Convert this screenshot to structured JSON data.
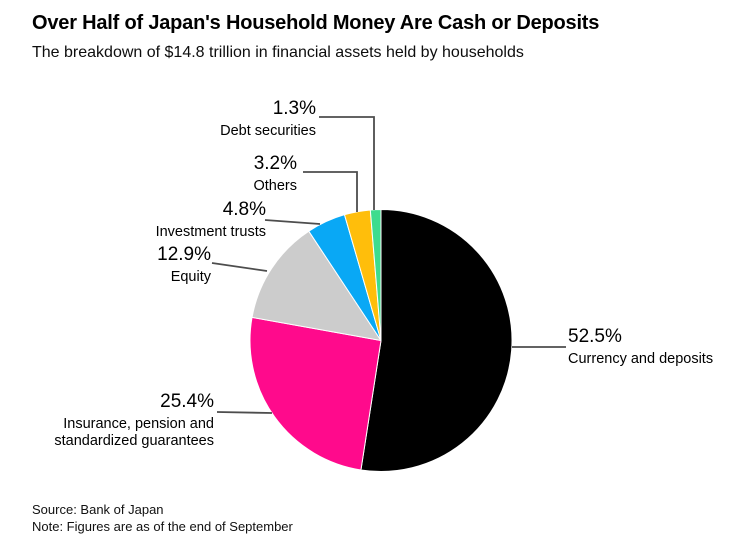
{
  "header": {
    "title": "Over Half of Japan's Household Money Are Cash or Deposits",
    "subtitle": "The breakdown of $14.8 trillion in financial assets held by households"
  },
  "chart_data": {
    "type": "pie",
    "title": "Over Half of Japan's Household Money Are Cash or Deposits",
    "subtitle": "The breakdown of $14.8 trillion in financial assets held by households",
    "total_described": "$14.8 trillion",
    "unit": "%",
    "direction": "clockwise",
    "start_angle_deg": 0,
    "legend_position": "callout-labels",
    "slices": [
      {
        "label": "Currency and deposits",
        "value": 52.5,
        "display_value": "52.5%",
        "color": "#000000"
      },
      {
        "label": "Insurance, pension and standardized guarantees",
        "value": 25.4,
        "display_value": "25.4%",
        "color": "#ff0a8c"
      },
      {
        "label": "Equity",
        "value": 12.9,
        "display_value": "12.9%",
        "color": "#cccccc"
      },
      {
        "label": "Investment trusts",
        "value": 4.8,
        "display_value": "4.8%",
        "color": "#09a8f5"
      },
      {
        "label": "Others",
        "value": 3.2,
        "display_value": "3.2%",
        "color": "#ffbe0b"
      },
      {
        "label": "Debt securities",
        "value": 1.3,
        "display_value": "1.3%",
        "color": "#3edc8e"
      }
    ]
  },
  "footer": {
    "source": "Source: Bank of Japan",
    "note": "Note: Figures are as of the end of September"
  },
  "style": {
    "leader_line_color": "#4d4d4d",
    "background_color": "#ffffff",
    "text_color": "#000000"
  }
}
